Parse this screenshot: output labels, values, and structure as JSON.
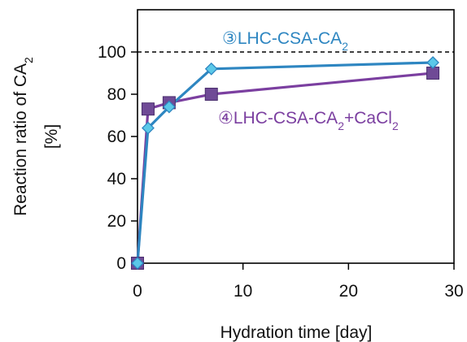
{
  "chart_data": {
    "type": "line",
    "xlabel": "Hydration time [day]",
    "ylabel": {
      "line1_prefix": "Reaction ratio of CA",
      "line1_sub": "2",
      "line2": "[%]"
    },
    "xlim": [
      0,
      30
    ],
    "ylim": [
      0,
      120
    ],
    "x_ticks": [
      0,
      10,
      20,
      30
    ],
    "y_ticks": [
      0,
      20,
      40,
      60,
      80,
      100
    ],
    "reference_line": {
      "y": 100,
      "style": "dashed"
    },
    "grid": false,
    "series": [
      {
        "name": "③LHC-CSA-CA2",
        "x": [
          0,
          1,
          3,
          7,
          28
        ],
        "y": [
          0,
          64,
          74,
          92,
          95
        ],
        "color": "#2e86c1",
        "marker": "diamond",
        "marker_fill": "#5bc8e8"
      },
      {
        "name": "④LHC-CSA-CA2+CaCl2",
        "x": [
          0,
          1,
          3,
          7,
          28
        ],
        "y": [
          0,
          73,
          76,
          80,
          90
        ],
        "color": "#7b3fa0",
        "marker": "square",
        "marker_fill": "#6f4a96"
      }
    ],
    "annotations": [
      {
        "circled": "③",
        "text": "LHC-CSA-CA",
        "sub1": "2",
        "mid": "",
        "sub2": "",
        "color": "#2e86c1"
      },
      {
        "circled": "④",
        "text": "LHC-CSA-CA",
        "sub1": "2",
        "mid": "+CaCl",
        "sub2": "2",
        "color": "#7b3fa0"
      }
    ]
  }
}
